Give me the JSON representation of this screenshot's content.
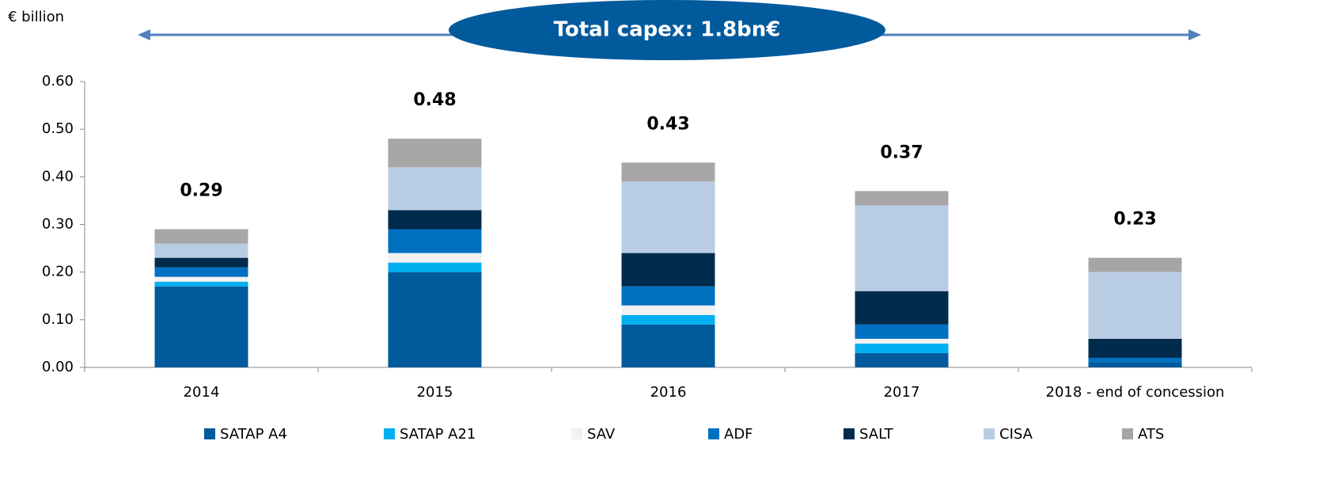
{
  "chart_data": {
    "type": "stacked_bar",
    "y_axis_label": "€ billion",
    "annotation": "Total capex: 1.8bn€",
    "categories": [
      "2014",
      "2015",
      "2016",
      "2017",
      "2018 - end of concession"
    ],
    "series": [
      {
        "name": "SATAP A4",
        "color": "#005a9c",
        "values": [
          0.17,
          0.2,
          0.09,
          0.03,
          0.01
        ]
      },
      {
        "name": "SATAP A21",
        "color": "#00b0f0",
        "values": [
          0.01,
          0.02,
          0.02,
          0.02,
          0
        ]
      },
      {
        "name": "SAV",
        "color": "#f2f2f2",
        "values": [
          0.01,
          0.02,
          0.02,
          0.01,
          0
        ]
      },
      {
        "name": "ADF",
        "color": "#0070c0",
        "values": [
          0.02,
          0.05,
          0.04,
          0.03,
          0.01
        ]
      },
      {
        "name": "SALT",
        "color": "#002b4d",
        "values": [
          0.02,
          0.04,
          0.07,
          0.07,
          0.04
        ]
      },
      {
        "name": "CISA",
        "color": "#b8cce4",
        "values": [
          0.03,
          0.09,
          0.15,
          0.18,
          0.14
        ]
      },
      {
        "name": "ATS",
        "color": "#a6a6a6",
        "values": [
          0.03,
          0.06,
          0.04,
          0.03,
          0.03
        ]
      }
    ],
    "totals": [
      0.29,
      0.48,
      0.43,
      0.37,
      0.23
    ],
    "ylim": [
      0,
      0.6
    ],
    "yticks": [
      {
        "value": 0,
        "label": "0.00"
      },
      {
        "value": 0.1,
        "label": "0.10"
      },
      {
        "value": 0.2,
        "label": "0.20"
      },
      {
        "value": 0.3,
        "label": "0.30"
      },
      {
        "value": 0.4,
        "label": "0.40"
      },
      {
        "value": 0.5,
        "label": "0.50"
      },
      {
        "value": 0.6,
        "label": "0.60"
      }
    ],
    "legend": "bottom"
  }
}
